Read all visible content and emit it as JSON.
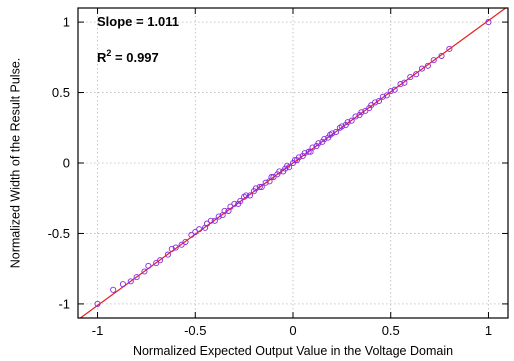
{
  "chart_data": {
    "type": "scatter",
    "xlabel": "Normalized Expected Output Value in the Voltage Domain",
    "ylabel": "Normalized Width of the Result Pulse.",
    "xlim": [
      -1.1,
      1.1
    ],
    "ylim": [
      -1.1,
      1.1
    ],
    "x_ticks": [
      "-1",
      "-0.5",
      "0",
      "0.5",
      "1"
    ],
    "y_ticks": [
      "-1",
      "-0.5",
      "0",
      "0.5",
      "1"
    ],
    "grid": true,
    "annotations": {
      "slope": "Slope = 1.011",
      "r2_prefix": "R",
      "r2_sup": "2",
      "r2_rest": " = 0.997"
    },
    "fit_line": {
      "slope": 1.011,
      "intercept": 0.0
    },
    "series": [
      {
        "marker": "circle",
        "x": [
          -1.0,
          -0.92,
          -0.87,
          -0.83,
          -0.8,
          -0.76,
          -0.74,
          -0.7,
          -0.68,
          -0.64,
          -0.62,
          -0.6,
          -0.57,
          -0.55,
          -0.52,
          -0.5,
          -0.48,
          -0.45,
          -0.44,
          -0.42,
          -0.4,
          -0.38,
          -0.36,
          -0.35,
          -0.33,
          -0.32,
          -0.3,
          -0.28,
          -0.27,
          -0.25,
          -0.24,
          -0.22,
          -0.2,
          -0.19,
          -0.17,
          -0.16,
          -0.14,
          -0.12,
          -0.11,
          -0.1,
          -0.08,
          -0.07,
          -0.05,
          -0.04,
          -0.03,
          -0.02,
          0.0,
          0.01,
          0.02,
          0.03,
          0.05,
          0.06,
          0.08,
          0.09,
          0.1,
          0.12,
          0.13,
          0.15,
          0.16,
          0.18,
          0.19,
          0.2,
          0.22,
          0.24,
          0.25,
          0.27,
          0.28,
          0.3,
          0.32,
          0.34,
          0.35,
          0.37,
          0.39,
          0.4,
          0.42,
          0.44,
          0.46,
          0.48,
          0.5,
          0.52,
          0.55,
          0.57,
          0.6,
          0.63,
          0.66,
          0.69,
          0.72,
          0.76,
          0.8,
          1.0
        ],
        "y": [
          -1.0,
          -0.9,
          -0.86,
          -0.84,
          -0.81,
          -0.77,
          -0.73,
          -0.71,
          -0.69,
          -0.65,
          -0.61,
          -0.6,
          -0.58,
          -0.56,
          -0.51,
          -0.49,
          -0.47,
          -0.46,
          -0.43,
          -0.41,
          -0.41,
          -0.38,
          -0.37,
          -0.34,
          -0.34,
          -0.31,
          -0.29,
          -0.29,
          -0.27,
          -0.24,
          -0.23,
          -0.23,
          -0.2,
          -0.18,
          -0.17,
          -0.17,
          -0.14,
          -0.13,
          -0.1,
          -0.1,
          -0.08,
          -0.06,
          -0.06,
          -0.04,
          -0.02,
          -0.03,
          0.0,
          0.02,
          0.02,
          0.04,
          0.05,
          0.07,
          0.08,
          0.08,
          0.11,
          0.12,
          0.14,
          0.15,
          0.17,
          0.18,
          0.2,
          0.21,
          0.22,
          0.25,
          0.26,
          0.27,
          0.29,
          0.3,
          0.33,
          0.34,
          0.36,
          0.37,
          0.39,
          0.41,
          0.43,
          0.44,
          0.47,
          0.48,
          0.51,
          0.52,
          0.56,
          0.57,
          0.61,
          0.63,
          0.67,
          0.69,
          0.73,
          0.76,
          0.81,
          1.0
        ]
      }
    ],
    "colors": {
      "marker": "#8a2be2",
      "fit_line": "#e8201e"
    }
  }
}
